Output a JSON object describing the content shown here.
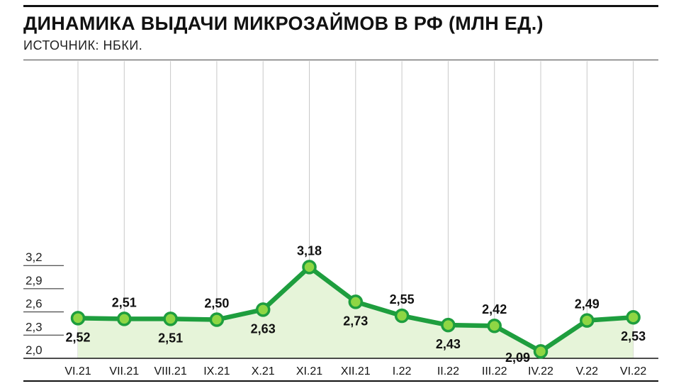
{
  "header": {
    "title": "ДИНАМИКА ВЫДАЧИ МИКРОЗАЙМОВ В РФ (МЛН ЕД.)",
    "source": "ИСТОЧНИК: НБКИ."
  },
  "colors": {
    "line": "#1e9e3e",
    "marker_fill": "#8ed644",
    "area_fill": "#e6f4d9",
    "grid": "#c8c8c8",
    "axis": "#111111"
  },
  "chart_data": {
    "type": "area",
    "title": "ДИНАМИКА ВЫДАЧИ МИКРОЗАЙМОВ В РФ (МЛН ЕД.)",
    "subtitle": "ИСТОЧНИК: НБКИ.",
    "xlabel": "",
    "ylabel": "",
    "categories": [
      "VI.21",
      "VII.21",
      "VIII.21",
      "IX.21",
      "X.21",
      "XI.21",
      "XII.21",
      "I.22",
      "II.22",
      "III.22",
      "IV.22",
      "V.22",
      "VI.22"
    ],
    "series": [
      {
        "values": [
          2.52,
          2.51,
          2.51,
          2.5,
          2.63,
          3.18,
          2.73,
          2.55,
          2.43,
          2.42,
          2.09,
          2.49,
          2.53
        ],
        "labels": [
          "2,52",
          "2,51",
          "2,51",
          "2,50",
          "2,63",
          "3,18",
          "2,73",
          "2,55",
          "2,43",
          "2,42",
          "2,09",
          "2,49",
          "2,53"
        ],
        "label_positions": [
          "below",
          "above",
          "below",
          "above",
          "below",
          "above",
          "below",
          "above",
          "below",
          "above",
          "left",
          "above",
          "below"
        ]
      }
    ],
    "yticks": [
      2.0,
      2.3,
      2.6,
      2.9,
      3.2
    ],
    "ytick_labels": [
      "2,0",
      "2,3",
      "2,6",
      "2,9",
      "3,2"
    ],
    "ylim": [
      2.0,
      3.35
    ],
    "grid": "vertical"
  }
}
